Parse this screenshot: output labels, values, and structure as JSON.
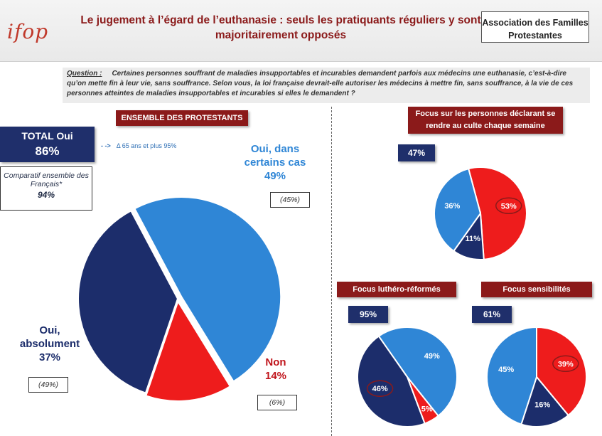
{
  "header": {
    "logo": "ifop",
    "title": "Le jugement à l’égard de l’euthanasie : seuls les pratiquants réguliers y sont majoritairement opposés",
    "client": "Association des Familles Protestantes"
  },
  "question": {
    "label": "Question :",
    "text": "Certaines personnes souffrant de maladies insupportables et incurables demandent parfois aux médecins une euthanasie, c’est-à-dire qu’on mette fin à leur vie, sans souffrance. Selon vous, la loi française devrait-elle autoriser les médecins à mettre fin, sans souffrance, à la vie de ces personnes atteintes de maladies insupportables et incurables si elles le demandent ?"
  },
  "colors": {
    "dark_blue": "#1c2d6b",
    "light_blue": "#2f86d6",
    "red": "#ee1c1c",
    "tag_red": "#8b1a1a"
  },
  "main": {
    "tag": "ENSEMBLE DES PROTESTANTS",
    "total_label": "TOTAL Oui",
    "total_value": "86%",
    "compare_label": "Comparatif ensemble des Français*",
    "compare_value": "94%",
    "note_arrow": "- ->",
    "note": "Δ 65 ans et plus 95%",
    "labels": {
      "oui_certains_cas": "Oui, dans certains cas",
      "oui_certains_cas_pct": "49%",
      "oui_certains_cas_cmp": "(45%)",
      "oui_absolument": "Oui, absolument",
      "oui_absolument_pct": "37%",
      "oui_absolument_cmp": "(49%)",
      "non": "Non",
      "non_pct": "14%",
      "non_cmp": "(6%)"
    }
  },
  "chart_data": [
    {
      "type": "pie",
      "title": "ENSEMBLE DES PROTESTANTS",
      "categories": [
        "Oui, dans certains cas",
        "Non",
        "Oui, absolument"
      ],
      "values": [
        49,
        14,
        37
      ],
      "comparison_values": [
        45,
        6,
        49
      ]
    },
    {
      "type": "pie",
      "title": "Focus sur les personnes déclarant se rendre au culte chaque semaine",
      "total": "47%",
      "values": [
        53,
        11,
        36
      ],
      "labels": [
        "53%",
        "11%",
        "36%"
      ]
    },
    {
      "type": "pie",
      "title": "Focus luthéro-réformés",
      "total": "95%",
      "values": [
        49,
        5,
        46
      ],
      "labels": [
        "49%",
        "5%",
        "46%"
      ]
    },
    {
      "type": "pie",
      "title": "Focus sensibilités",
      "total": "61%",
      "values": [
        39,
        16,
        45
      ],
      "labels": [
        "39%",
        "16%",
        "45%"
      ]
    }
  ]
}
